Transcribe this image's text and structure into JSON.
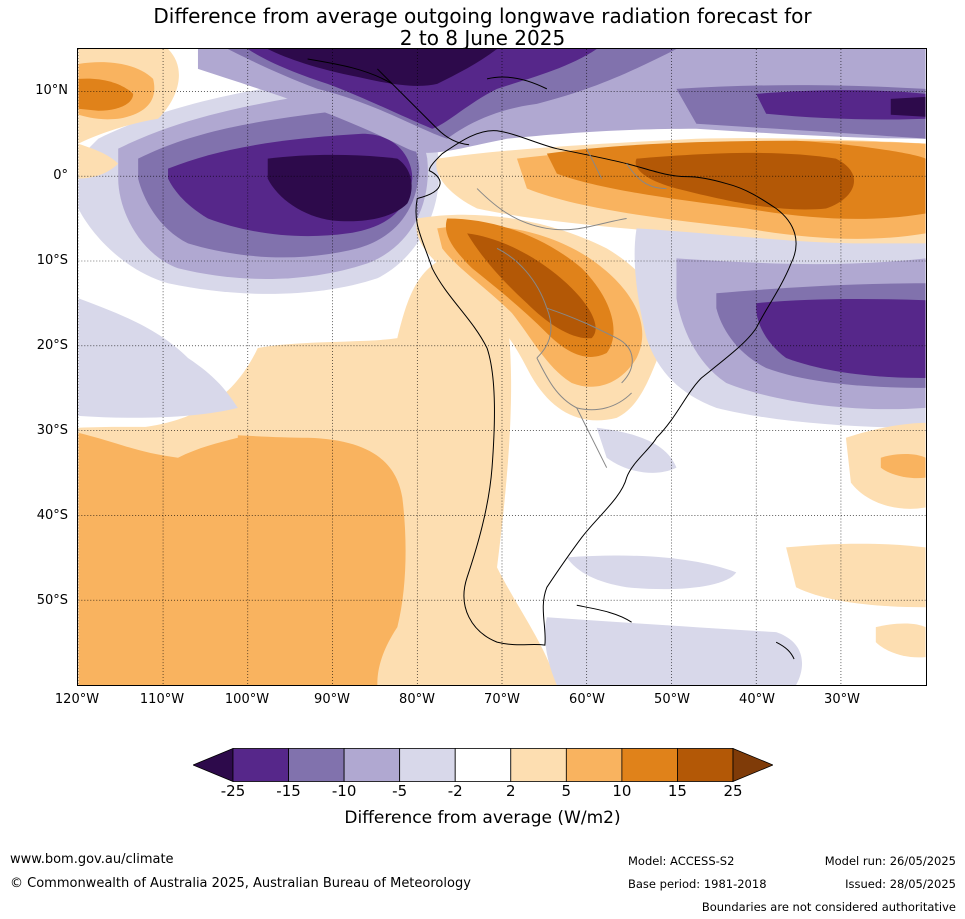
{
  "title": {
    "line1": "Difference from average outgoing longwave radiation forecast for",
    "line2": "2 to 8 June 2025"
  },
  "map": {
    "lon_range": [
      -120,
      -20
    ],
    "lat_range": [
      -60,
      15
    ],
    "lat_labels": [
      {
        "lat": 10,
        "text": "10°N"
      },
      {
        "lat": 0,
        "text": "0°"
      },
      {
        "lat": -10,
        "text": "10°S"
      },
      {
        "lat": -20,
        "text": "20°S"
      },
      {
        "lat": -30,
        "text": "30°S"
      },
      {
        "lat": -40,
        "text": "40°S"
      },
      {
        "lat": -50,
        "text": "50°S"
      }
    ],
    "lon_labels": [
      {
        "lon": -120,
        "text": "120°W"
      },
      {
        "lon": -110,
        "text": "110°W"
      },
      {
        "lon": -100,
        "text": "100°W"
      },
      {
        "lon": -90,
        "text": "90°W"
      },
      {
        "lon": -80,
        "text": "80°W"
      },
      {
        "lon": -70,
        "text": "70°W"
      },
      {
        "lon": -60,
        "text": "60°W"
      },
      {
        "lon": -50,
        "text": "50°W"
      },
      {
        "lon": -40,
        "text": "40°W"
      },
      {
        "lon": -30,
        "text": "30°W"
      }
    ]
  },
  "colorbar": {
    "ticks": [
      "-25",
      "-15",
      "-10",
      "-5",
      "-2",
      "2",
      "5",
      "10",
      "15",
      "25"
    ],
    "colors": [
      "#2d0a4b",
      "#56278a",
      "#8172ad",
      "#b0a8d1",
      "#d8d8ea",
      "#ffffff",
      "#fddeb1",
      "#f9b35f",
      "#e0821a",
      "#b35806",
      "#7f3b08"
    ],
    "label": "Difference from average (W/m2)"
  },
  "footer": {
    "website": "www.bom.gov.au/climate",
    "copyright": "© Commonwealth of Australia 2025, Australian Bureau of Meteorology",
    "model": "Model: ACCESS-S2",
    "base_period": "Base period: 1981-2018",
    "model_run": "Model run: 26/05/2025",
    "issued": "Issued: 28/05/2025",
    "disclaimer": "Boundaries are not considered authoritative"
  }
}
